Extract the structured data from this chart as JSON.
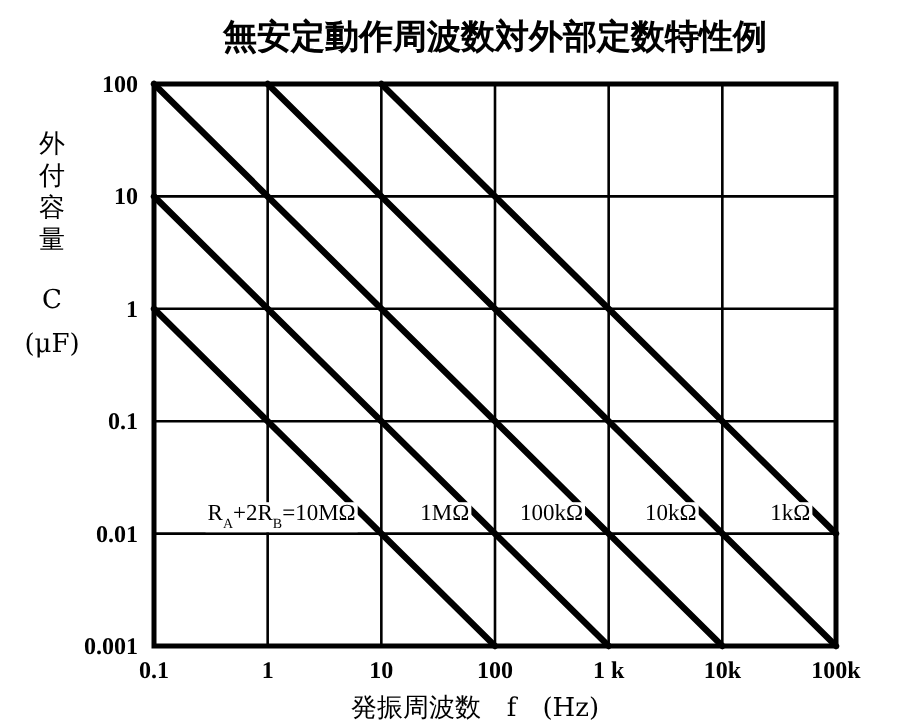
{
  "chart_data": {
    "type": "line",
    "title": "無安定動作周波数対外部定数特性例",
    "xlabel": "発振周波数　f　(Hz)",
    "ylabel": "外付容量 C (μF)",
    "log": "xy",
    "grid": true,
    "marker": "none",
    "line_style": "solid",
    "xlim": [
      0.1,
      100000
    ],
    "ylim": [
      0.001,
      100
    ],
    "xticks": [
      0.1,
      1,
      10,
      100,
      {
        "value": 1000,
        "label": "1 k"
      },
      {
        "value": 10000,
        "label": "10k"
      },
      {
        "value": 100000,
        "label": "100k"
      }
    ],
    "yticks": [
      0.001,
      0.01,
      0.1,
      1,
      10,
      100
    ],
    "series": [
      {
        "name": "R$_{A}$+2R$_{B}$=10MΩ",
        "color": "#000000",
        "x": [
          0.1,
          100
        ],
        "values": [
          1,
          0.001
        ]
      },
      {
        "name": "1MΩ",
        "color": "#000000",
        "x": [
          0.1,
          1000
        ],
        "values": [
          10,
          0.001
        ]
      },
      {
        "name": "100kΩ",
        "color": "#000000",
        "x": [
          0.1,
          10000
        ],
        "values": [
          100,
          0.001
        ]
      },
      {
        "name": "10kΩ",
        "color": "#000000",
        "x": [
          1,
          100000
        ],
        "values": [
          100,
          0.001
        ]
      },
      {
        "name": "1kΩ",
        "color": "#000000",
        "x": [
          10,
          100000
        ],
        "values": [
          100,
          0.01
        ]
      }
    ]
  }
}
